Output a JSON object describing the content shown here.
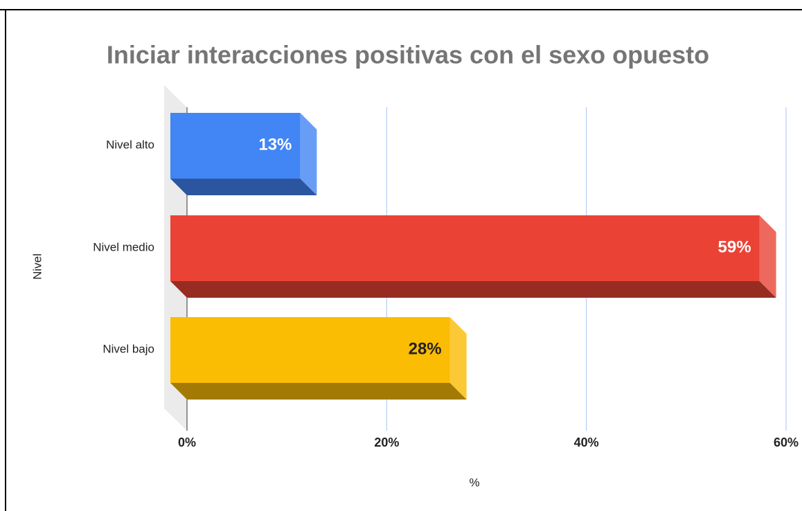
{
  "chart_data": {
    "type": "bar3d",
    "title": "Iniciar interacciones positivas con el sexo opuesto",
    "x_label": "%",
    "y_label": "Nivel",
    "categories": [
      "Nivel alto",
      "Nivel medio",
      "Nivel bajo"
    ],
    "values": [
      13,
      59,
      28
    ],
    "value_labels": [
      "13%",
      "59%",
      "28%"
    ],
    "colors": [
      "#4285f4",
      "#ea4335",
      "#fbbc04"
    ],
    "xlim": [
      0,
      60
    ],
    "xticks": [
      {
        "value": 0,
        "label": "0%"
      },
      {
        "value": 20,
        "label": "20%"
      },
      {
        "value": 40,
        "label": "40%"
      },
      {
        "value": 60,
        "label": "60%"
      }
    ],
    "grid": true
  }
}
